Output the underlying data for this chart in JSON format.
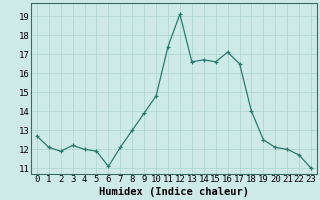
{
  "x": [
    0,
    1,
    2,
    3,
    4,
    5,
    6,
    7,
    8,
    9,
    10,
    11,
    12,
    13,
    14,
    15,
    16,
    17,
    18,
    19,
    20,
    21,
    22,
    23
  ],
  "y": [
    12.7,
    12.1,
    11.9,
    12.2,
    12.0,
    11.9,
    11.1,
    12.1,
    13.0,
    13.9,
    14.8,
    17.4,
    19.1,
    16.6,
    16.7,
    16.6,
    17.1,
    16.5,
    14.0,
    12.5,
    12.1,
    12.0,
    11.7,
    11.0
  ],
  "xlabel": "Humidex (Indice chaleur)",
  "ylim": [
    10.7,
    19.7
  ],
  "xlim": [
    -0.5,
    23.5
  ],
  "yticks": [
    11,
    12,
    13,
    14,
    15,
    16,
    17,
    18,
    19
  ],
  "xticks": [
    0,
    1,
    2,
    3,
    4,
    5,
    6,
    7,
    8,
    9,
    10,
    11,
    12,
    13,
    14,
    15,
    16,
    17,
    18,
    19,
    20,
    21,
    22,
    23
  ],
  "line_color": "#2a7b6f",
  "bg_color": "#ceeae6",
  "grid_color": "#aed4cf",
  "tick_fontsize": 6.5,
  "xlabel_fontsize": 7.5,
  "marker_color": "#2a7b6f"
}
